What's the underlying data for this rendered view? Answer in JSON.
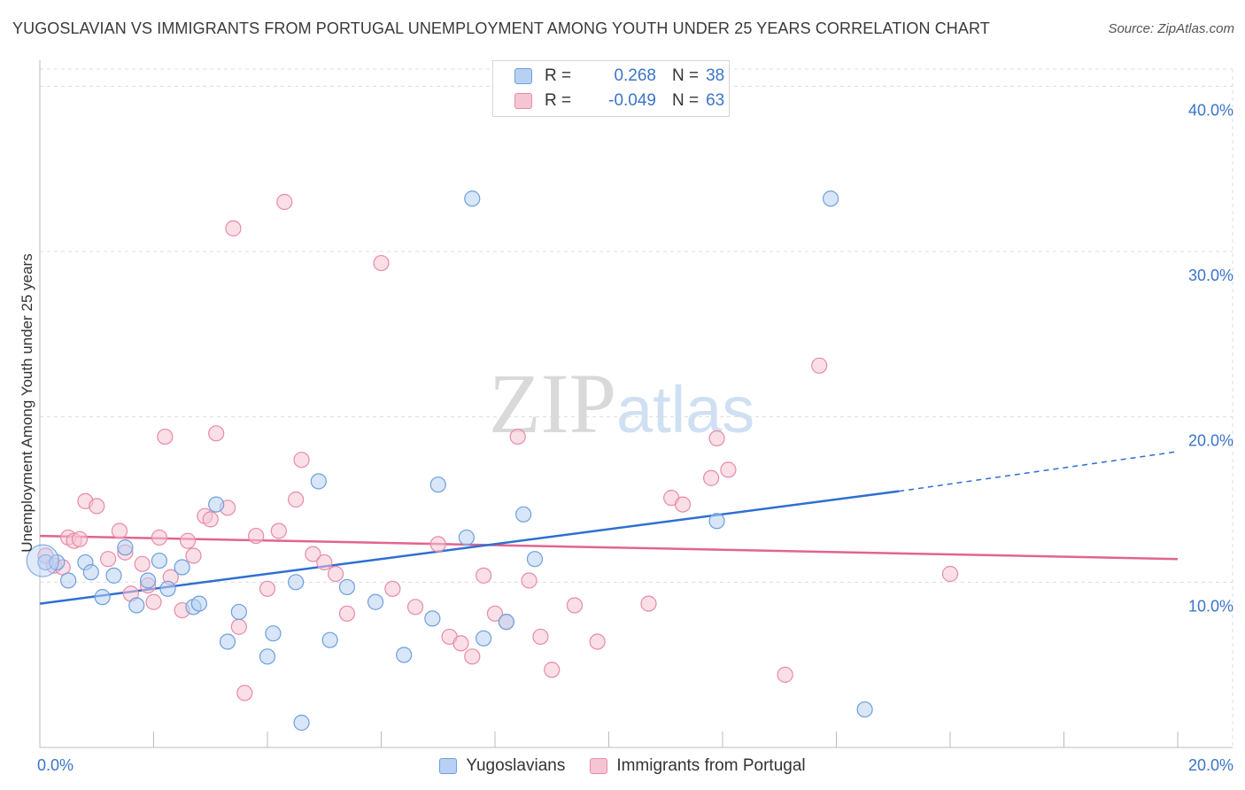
{
  "title": "YUGOSLAVIAN VS IMMIGRANTS FROM PORTUGAL UNEMPLOYMENT AMONG YOUTH UNDER 25 YEARS CORRELATION CHART",
  "source": "Source: ZipAtlas.com",
  "watermark": {
    "zip": "ZIP",
    "atlas": "atlas"
  },
  "legend_top": [
    {
      "r_label": "R =",
      "r_value": "0.268",
      "n_label": "N =",
      "n_value": "38"
    },
    {
      "r_label": "R =",
      "r_value": "-0.049",
      "n_label": "N =",
      "n_value": "63"
    }
  ],
  "legend_bottom": [
    "Yugoslavians",
    "Immigrants from Portugal"
  ],
  "colors": {
    "blue_fill": "#b8d1f3",
    "blue_stroke": "#6d9fdc",
    "blue_line": "#2f6fd1",
    "pink_fill": "#f6c5d4",
    "pink_stroke": "#e88aa8",
    "pink_line": "#e2648e",
    "axis_text": "#3a74c9",
    "grid": "#dddddd"
  },
  "chart_data": {
    "type": "scatter",
    "xlabel": "",
    "ylabel": "Unemployment Among Youth under 25 years",
    "xlim": [
      0,
      20
    ],
    "ylim": [
      0,
      42
    ],
    "x_tick_labels": [
      {
        "value": 0,
        "label": "0.0%"
      },
      {
        "value": 20,
        "label": "20.0%"
      }
    ],
    "y_tick_labels": [
      {
        "value": 10,
        "label": "10.0%"
      },
      {
        "value": 20,
        "label": "20.0%"
      },
      {
        "value": 30,
        "label": "30.0%"
      },
      {
        "value": 40,
        "label": "40.0%"
      }
    ],
    "grid": true,
    "series": [
      {
        "name": "Yugoslavians",
        "points": [
          [
            0.1,
            11.2
          ],
          [
            0.3,
            11.2
          ],
          [
            0.5,
            10.1
          ],
          [
            0.8,
            11.2
          ],
          [
            0.9,
            10.6
          ],
          [
            1.1,
            9.1
          ],
          [
            1.3,
            10.4
          ],
          [
            1.5,
            12.1
          ],
          [
            1.7,
            8.6
          ],
          [
            1.9,
            10.1
          ],
          [
            2.1,
            11.3
          ],
          [
            2.25,
            9.6
          ],
          [
            2.5,
            10.9
          ],
          [
            2.7,
            8.5
          ],
          [
            2.8,
            8.7
          ],
          [
            3.1,
            14.7
          ],
          [
            3.3,
            6.4
          ],
          [
            3.5,
            8.2
          ],
          [
            4.0,
            5.5
          ],
          [
            4.1,
            6.9
          ],
          [
            4.5,
            10.0
          ],
          [
            4.6,
            1.5
          ],
          [
            4.9,
            16.1
          ],
          [
            5.1,
            6.5
          ],
          [
            5.4,
            9.7
          ],
          [
            5.9,
            8.8
          ],
          [
            6.4,
            5.6
          ],
          [
            6.9,
            7.8
          ],
          [
            7.0,
            15.9
          ],
          [
            7.5,
            12.7
          ],
          [
            7.6,
            33.2
          ],
          [
            7.8,
            6.6
          ],
          [
            8.2,
            7.6
          ],
          [
            8.5,
            14.1
          ],
          [
            8.7,
            11.4
          ],
          [
            11.9,
            13.7
          ],
          [
            13.9,
            33.2
          ],
          [
            14.5,
            2.3
          ]
        ],
        "trend": {
          "x": [
            0,
            15.1
          ],
          "y": [
            8.7,
            15.5
          ],
          "dashed_to": [
            20,
            17.9
          ]
        }
      },
      {
        "name": "Immigrants from Portugal",
        "points": [
          [
            0.1,
            11.6
          ],
          [
            0.5,
            12.7
          ],
          [
            0.6,
            12.5
          ],
          [
            0.7,
            12.6
          ],
          [
            0.8,
            14.9
          ],
          [
            1.0,
            14.6
          ],
          [
            1.2,
            11.4
          ],
          [
            1.4,
            13.1
          ],
          [
            1.5,
            11.8
          ],
          [
            1.6,
            9.3
          ],
          [
            1.8,
            11.1
          ],
          [
            1.9,
            9.8
          ],
          [
            2.0,
            8.8
          ],
          [
            2.1,
            12.7
          ],
          [
            2.2,
            18.8
          ],
          [
            2.3,
            10.3
          ],
          [
            2.5,
            8.3
          ],
          [
            2.6,
            12.5
          ],
          [
            2.7,
            11.6
          ],
          [
            2.9,
            14.0
          ],
          [
            3.0,
            13.8
          ],
          [
            3.1,
            19.0
          ],
          [
            3.3,
            14.5
          ],
          [
            3.4,
            31.4
          ],
          [
            3.5,
            7.3
          ],
          [
            3.6,
            3.3
          ],
          [
            3.8,
            12.8
          ],
          [
            4.0,
            9.6
          ],
          [
            4.2,
            13.1
          ],
          [
            4.3,
            33.0
          ],
          [
            4.5,
            15.0
          ],
          [
            4.6,
            17.4
          ],
          [
            4.8,
            11.7
          ],
          [
            5.0,
            11.2
          ],
          [
            5.2,
            10.5
          ],
          [
            5.4,
            8.1
          ],
          [
            6.0,
            29.3
          ],
          [
            6.2,
            9.6
          ],
          [
            6.6,
            8.5
          ],
          [
            7.0,
            12.3
          ],
          [
            7.2,
            6.7
          ],
          [
            7.4,
            6.3
          ],
          [
            7.6,
            5.5
          ],
          [
            7.8,
            10.4
          ],
          [
            8.0,
            8.1
          ],
          [
            8.2,
            7.6
          ],
          [
            8.4,
            18.8
          ],
          [
            8.6,
            10.1
          ],
          [
            8.8,
            6.7
          ],
          [
            9.0,
            4.7
          ],
          [
            9.4,
            8.6
          ],
          [
            9.8,
            6.4
          ],
          [
            10.7,
            8.7
          ],
          [
            11.1,
            15.1
          ],
          [
            11.3,
            14.7
          ],
          [
            11.8,
            16.3
          ],
          [
            11.9,
            18.7
          ],
          [
            12.1,
            16.8
          ],
          [
            13.1,
            4.4
          ],
          [
            13.7,
            23.1
          ],
          [
            16.0,
            10.5
          ],
          [
            0.25,
            11.0
          ],
          [
            0.4,
            10.9
          ]
        ],
        "trend": {
          "x": [
            0,
            20
          ],
          "y": [
            12.8,
            11.4
          ]
        }
      }
    ]
  }
}
